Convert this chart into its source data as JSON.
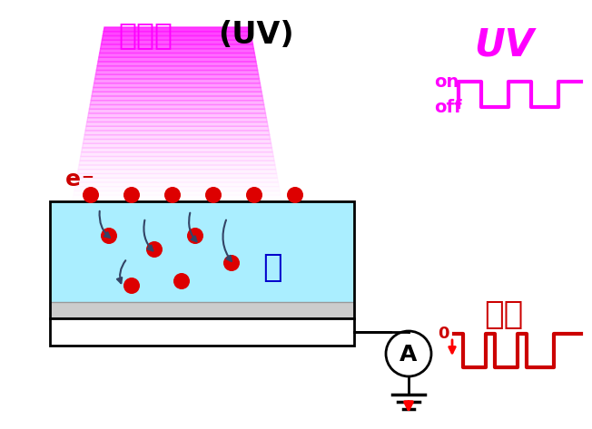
{
  "bg_color": "#ffffff",
  "uv_label": "紫外线(UV)",
  "uv_label_chinese_color": "#ff00ff",
  "uv_label_uv_color": "#000000",
  "ice_label": "冰",
  "ice_label_color": "#0000cc",
  "electron_label": "e",
  "electron_label_color": "#cc0000",
  "uv_signal_label": "UV",
  "uv_signal_color": "#ff00ff",
  "current_label": "电流",
  "current_label_color": "#cc0000",
  "on_label": "on",
  "off_label": "off",
  "ice_fill_color": "#aaeeff",
  "ice_border_color": "#aaeeff",
  "uv_cone_top_color": "#ff44ff",
  "uv_cone_bottom_color": "#ffccff",
  "electrode_color": "#dddddd",
  "electron_dot_color": "#dd0000",
  "arrow_color": "#334466"
}
